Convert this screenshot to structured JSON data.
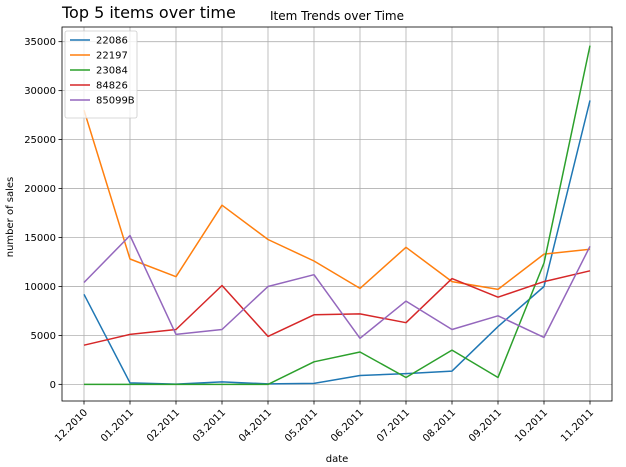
{
  "figure": {
    "suptitle": "Top 5 items over time"
  },
  "chart_data": {
    "type": "line",
    "title": "Item Trends over Time",
    "xlabel": "date",
    "ylabel": "number of sales",
    "categories": [
      "12.2010",
      "01.2011",
      "02.2011",
      "03.2011",
      "04.2011",
      "05.2011",
      "06.2011",
      "07.2011",
      "08.2011",
      "09.2011",
      "10.2011",
      "11.2011"
    ],
    "ylim": [
      -1700,
      36500
    ],
    "yticks": [
      0,
      5000,
      10000,
      15000,
      20000,
      25000,
      30000,
      35000
    ],
    "grid": true,
    "legend_position": "top-left",
    "series": [
      {
        "name": "22086",
        "color": "#1f77b4",
        "values": [
          9200,
          150,
          30,
          250,
          50,
          100,
          900,
          1100,
          1350,
          5900,
          10000,
          29000
        ]
      },
      {
        "name": "22197",
        "color": "#ff7f0e",
        "values": [
          28000,
          12800,
          11000,
          18300,
          14800,
          12600,
          9800,
          14000,
          10500,
          9700,
          13300,
          13800
        ]
      },
      {
        "name": "23084",
        "color": "#2ca02c",
        "values": [
          0,
          0,
          0,
          0,
          0,
          2300,
          3300,
          700,
          3500,
          700,
          12400,
          34600
        ]
      },
      {
        "name": "84826",
        "color": "#d62728",
        "values": [
          4000,
          5100,
          5600,
          10100,
          4900,
          7100,
          7200,
          6300,
          10800,
          8900,
          10500,
          11600
        ]
      },
      {
        "name": "85099B",
        "color": "#9467bd",
        "values": [
          10400,
          15200,
          5100,
          5600,
          10000,
          11200,
          4700,
          8500,
          5600,
          7000,
          4800,
          14100
        ]
      }
    ]
  }
}
